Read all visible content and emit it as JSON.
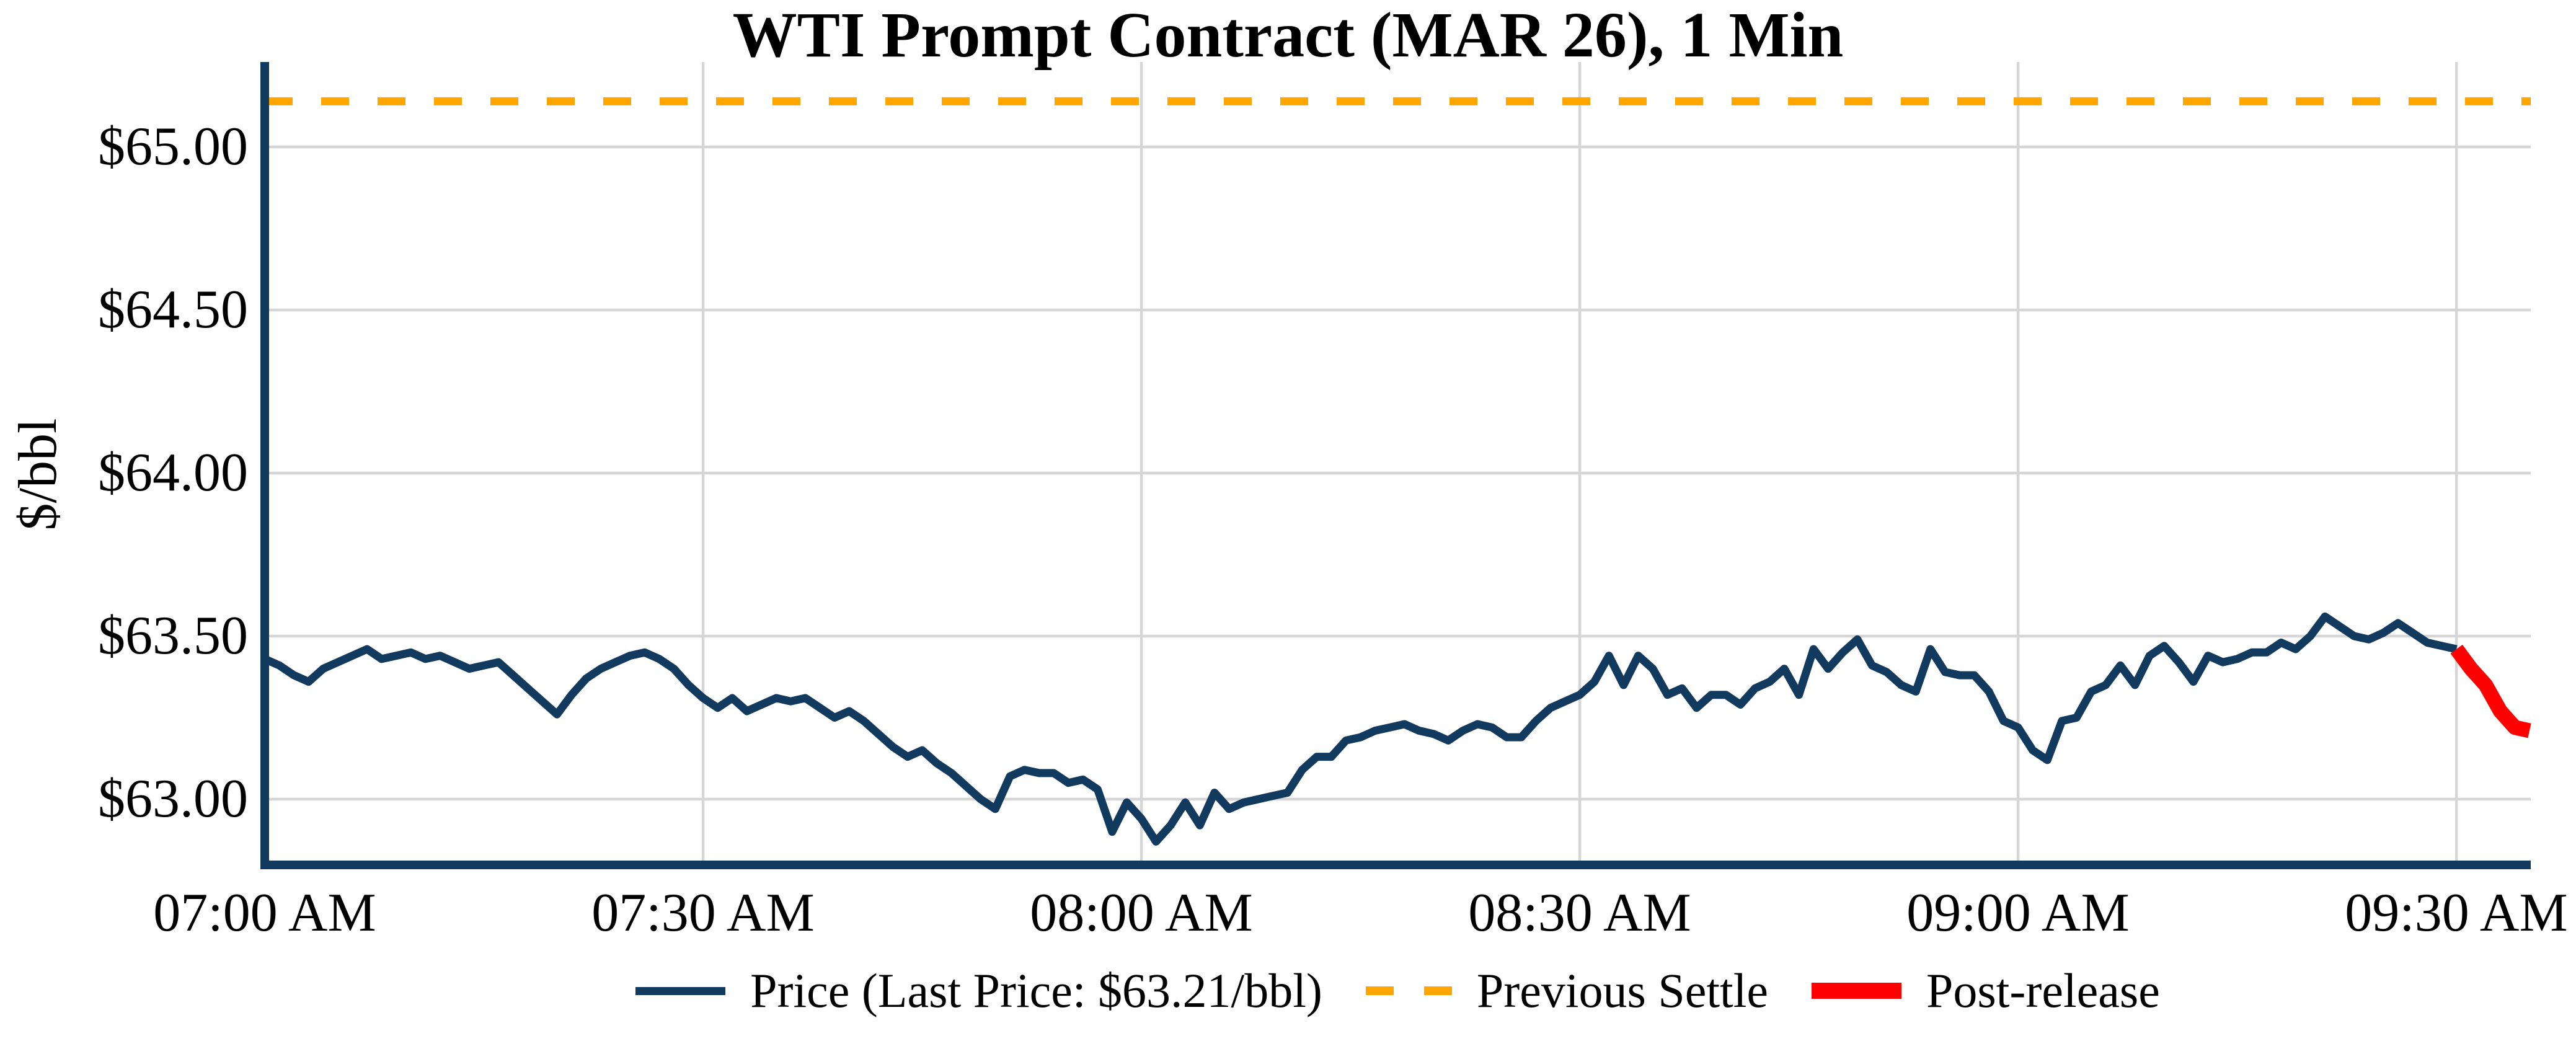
{
  "chart_data": {
    "type": "line",
    "title": "WTI Prompt Contract (MAR 26), 1 Min",
    "ylabel": "$/bbl",
    "xlabel": "",
    "x_tick_labels": [
      "07:00 AM",
      "07:30 AM",
      "08:00 AM",
      "08:30 AM",
      "09:00 AM",
      "09:30 AM"
    ],
    "x_tick_minutes": [
      0,
      30,
      60,
      90,
      120,
      150
    ],
    "y_tick_labels": [
      "$65.00",
      "$64.50",
      "$64.00",
      "$63.50",
      "$63.00"
    ],
    "y_tick_values": [
      65.0,
      64.5,
      64.0,
      63.5,
      63.0
    ],
    "ylim": [
      62.81,
      65.26
    ],
    "x_start": "07:00 AM",
    "x_end": "09:35 AM",
    "interval_minutes": 1,
    "previous_settle": 65.14,
    "last_price": 63.21,
    "post_release_start_index": 150,
    "prices": [
      63.43,
      63.41,
      63.38,
      63.36,
      63.4,
      63.42,
      63.44,
      63.46,
      63.43,
      63.44,
      63.45,
      63.43,
      63.44,
      63.42,
      63.4,
      63.41,
      63.42,
      63.38,
      63.34,
      63.3,
      63.26,
      63.32,
      63.37,
      63.4,
      63.42,
      63.44,
      63.45,
      63.43,
      63.4,
      63.35,
      63.31,
      63.28,
      63.31,
      63.27,
      63.29,
      63.31,
      63.3,
      63.31,
      63.28,
      63.25,
      63.27,
      63.24,
      63.2,
      63.16,
      63.13,
      63.15,
      63.11,
      63.08,
      63.04,
      63.0,
      62.97,
      63.07,
      63.09,
      63.08,
      63.08,
      63.05,
      63.06,
      63.03,
      62.9,
      62.99,
      62.94,
      62.87,
      62.92,
      62.99,
      62.92,
      63.02,
      62.97,
      62.99,
      63.0,
      63.01,
      63.02,
      63.09,
      63.13,
      63.13,
      63.18,
      63.19,
      63.21,
      63.22,
      63.23,
      63.21,
      63.2,
      63.18,
      63.21,
      63.23,
      63.22,
      63.19,
      63.19,
      63.24,
      63.28,
      63.3,
      63.32,
      63.36,
      63.44,
      63.35,
      63.44,
      63.4,
      63.32,
      63.34,
      63.28,
      63.32,
      63.32,
      63.29,
      63.34,
      63.36,
      63.4,
      63.32,
      63.46,
      63.4,
      63.45,
      63.49,
      63.41,
      63.39,
      63.35,
      63.33,
      63.46,
      63.39,
      63.38,
      63.38,
      63.33,
      63.24,
      63.22,
      63.15,
      63.12,
      63.24,
      63.25,
      63.33,
      63.35,
      63.41,
      63.35,
      63.44,
      63.47,
      63.42,
      63.36,
      63.44,
      63.42,
      63.43,
      63.45,
      63.45,
      63.48,
      63.46,
      63.5,
      63.56,
      63.53,
      63.5,
      63.49,
      63.51,
      63.54,
      63.51,
      63.48,
      63.47,
      63.46,
      63.4,
      63.35,
      63.27,
      63.22,
      63.21
    ],
    "legend": {
      "position": "bottom-center",
      "items": [
        {
          "label": "Price (Last Price: $63.21/bbl)",
          "swatch": "navy-line"
        },
        {
          "label": "Previous Settle",
          "swatch": "orange-dashed"
        },
        {
          "label": "Post-release",
          "swatch": "red-thick"
        }
      ]
    },
    "colors": {
      "price": "#123a5e",
      "previous_settle": "#ffa500",
      "post_release": "#ff0000",
      "gridline": "#d6d6d6",
      "axis": "#123a5e",
      "text": "#000000"
    },
    "grid": true
  }
}
